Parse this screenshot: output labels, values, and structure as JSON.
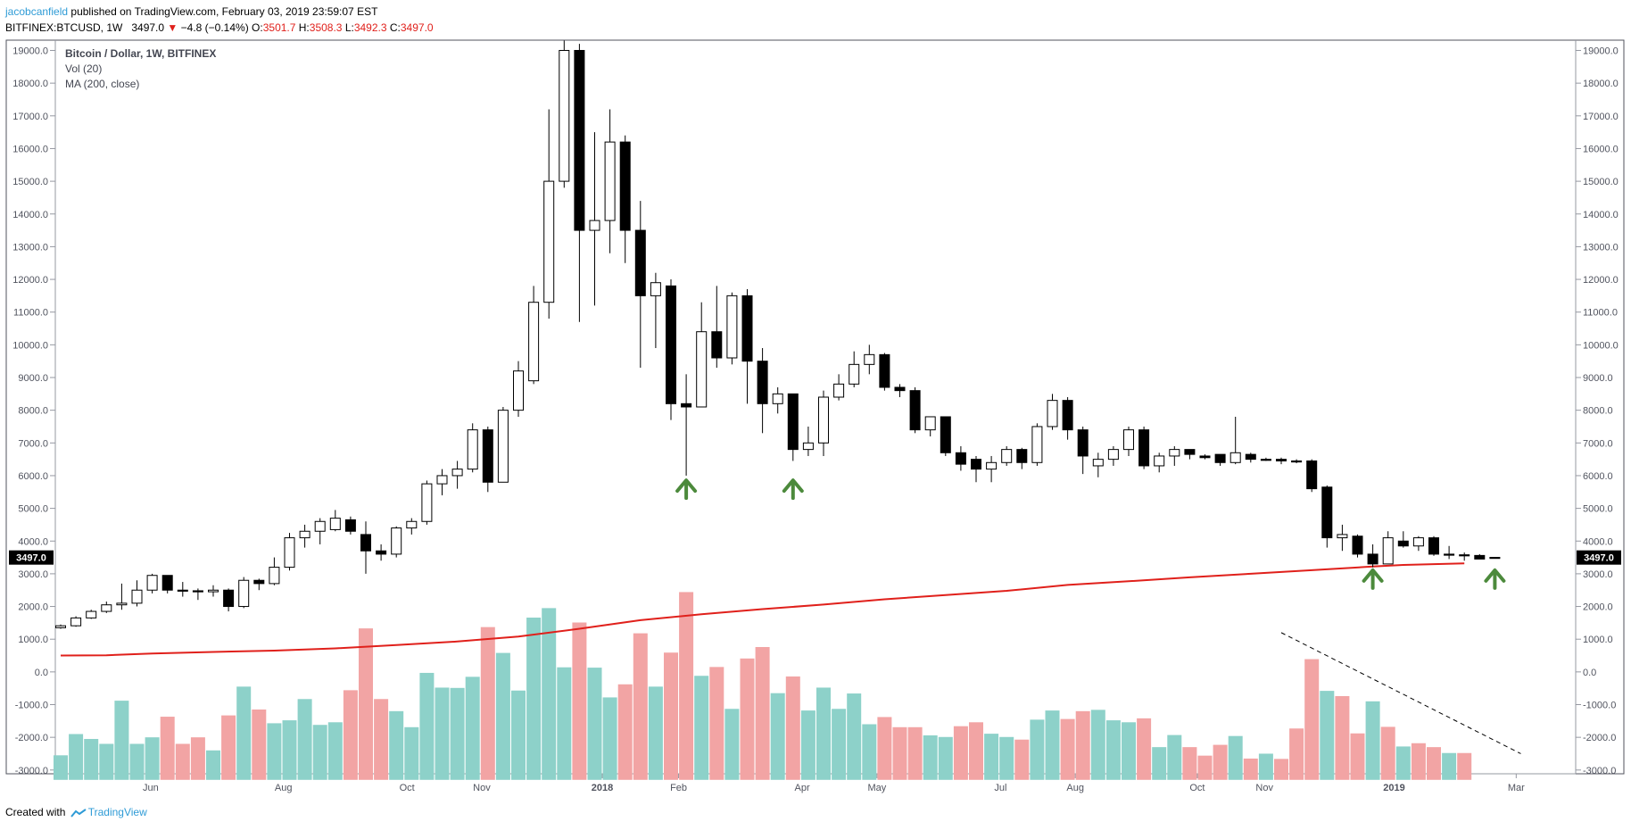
{
  "header": {
    "author": "jacobcanfield",
    "published": "published on TradingView.com, February 03, 2019 23:59:07 EST",
    "symbol": "BITFINEX:BTCUSD, 1W",
    "last": "3497.0",
    "down_arrow": "▼",
    "change": "−4.8 (−0.14%)",
    "o_label": "O:",
    "o_value": "3501.7",
    "h_label": "H:",
    "h_value": "3508.3",
    "l_label": "L:",
    "l_value": "3492.3",
    "c_label": "C:",
    "c_value": "3497.0"
  },
  "legend": {
    "line1": "Bitcoin / Dollar, 1W, BITFINEX",
    "line2": "Vol (20)",
    "line3": "MA (200, close)"
  },
  "footer": {
    "created_with": "Created with",
    "brand": "TradingView"
  },
  "colors": {
    "up_fill": "#ffffff",
    "down_fill": "#000000",
    "candle_border": "#000000",
    "vol_up": "#8dd1c9",
    "vol_down": "#f2a4a4",
    "ma_line": "#e0201b",
    "arrows": "#4c8a3c",
    "axis": "#50535e",
    "price_tag_bg": "#000000",
    "price_tag_text": "#ffffff"
  },
  "chart_data": {
    "type": "candlestick",
    "symbol": "BITFINEX:BTCUSD",
    "interval": "1W",
    "y_axis": {
      "ticks": [
        "19000.0",
        "18000.0",
        "17000.0",
        "16000.0",
        "15000.0",
        "14000.0",
        "13000.0",
        "12000.0",
        "11000.0",
        "10000.0",
        "9000.0",
        "8000.0",
        "7000.0",
        "6000.0",
        "5000.0",
        "4000.0",
        "3000.0",
        "2000.0",
        "1000.0",
        "0.0",
        "-1000.0",
        "-2000.0",
        "-3000.0"
      ],
      "range": [
        -3300,
        19300
      ]
    },
    "x_axis": {
      "labels": [
        {
          "text": "Jun",
          "i": 5.9
        },
        {
          "text": "Aug",
          "i": 14.6
        },
        {
          "text": "Oct",
          "i": 22.7
        },
        {
          "text": "Nov",
          "i": 27.6
        },
        {
          "text": "2018",
          "i": 35.5
        },
        {
          "text": "Feb",
          "i": 40.5
        },
        {
          "text": "Apr",
          "i": 48.6
        },
        {
          "text": "May",
          "i": 53.5
        },
        {
          "text": "Jul",
          "i": 61.6
        },
        {
          "text": "Aug",
          "i": 66.5
        },
        {
          "text": "Oct",
          "i": 74.5
        },
        {
          "text": "Nov",
          "i": 78.9
        },
        {
          "text": "2019",
          "i": 87.4
        },
        {
          "text": "Mar",
          "i": 95.4
        }
      ]
    },
    "last_price": "3497.0",
    "ohlc": [
      [
        1350,
        1450,
        1320,
        1410
      ],
      [
        1410,
        1700,
        1380,
        1650
      ],
      [
        1650,
        1900,
        1620,
        1850
      ],
      [
        1850,
        2150,
        1800,
        2050
      ],
      [
        2050,
        2700,
        1900,
        2100
      ],
      [
        2100,
        2800,
        2000,
        2500
      ],
      [
        2500,
        3000,
        2400,
        2950
      ],
      [
        2950,
        2950,
        2400,
        2500
      ],
      [
        2500,
        2750,
        2300,
        2480
      ],
      [
        2480,
        2550,
        2200,
        2450
      ],
      [
        2450,
        2650,
        2300,
        2500
      ],
      [
        2500,
        2550,
        1850,
        2000
      ],
      [
        2000,
        2900,
        1950,
        2800
      ],
      [
        2800,
        2850,
        2500,
        2700
      ],
      [
        2700,
        3500,
        2650,
        3200
      ],
      [
        3200,
        4250,
        3100,
        4100
      ],
      [
        4100,
        4500,
        3800,
        4300
      ],
      [
        4300,
        4700,
        3900,
        4600
      ],
      [
        4350,
        4950,
        4300,
        4700
      ],
      [
        4650,
        4750,
        4200,
        4300
      ],
      [
        4200,
        4600,
        3000,
        3700
      ],
      [
        3700,
        3900,
        3400,
        3600
      ],
      [
        3600,
        4450,
        3500,
        4400
      ],
      [
        4400,
        4700,
        4200,
        4600
      ],
      [
        4600,
        5850,
        4500,
        5750
      ],
      [
        5750,
        6200,
        5400,
        6000
      ],
      [
        6000,
        6450,
        5600,
        6200
      ],
      [
        6200,
        7600,
        6100,
        7400
      ],
      [
        7400,
        7500,
        5500,
        5800
      ],
      [
        5800,
        8100,
        5800,
        8000
      ],
      [
        8000,
        9500,
        7800,
        9200
      ],
      [
        8900,
        11800,
        8800,
        11300
      ],
      [
        11300,
        17200,
        10800,
        15000
      ],
      [
        15000,
        19300,
        14800,
        19000
      ],
      [
        19000,
        19200,
        10700,
        13500
      ],
      [
        13500,
        16500,
        11200,
        13800
      ],
      [
        13800,
        17200,
        12800,
        16200
      ],
      [
        16200,
        16400,
        12500,
        13500
      ],
      [
        13500,
        14400,
        9300,
        11500
      ],
      [
        11500,
        12200,
        9900,
        11900
      ],
      [
        11800,
        12000,
        7700,
        8200
      ],
      [
        8200,
        9100,
        6000,
        8100
      ],
      [
        8100,
        11300,
        8100,
        10400
      ],
      [
        10400,
        11800,
        9300,
        9600
      ],
      [
        9600,
        11600,
        9400,
        11500
      ],
      [
        11500,
        11700,
        8200,
        9500
      ],
      [
        9500,
        9900,
        7300,
        8200
      ],
      [
        8200,
        8700,
        7900,
        8500
      ],
      [
        8500,
        8500,
        6450,
        6800
      ],
      [
        6800,
        7500,
        6600,
        7000
      ],
      [
        7000,
        8600,
        6600,
        8400
      ],
      [
        8400,
        9100,
        8300,
        8800
      ],
      [
        8800,
        9800,
        8700,
        9400
      ],
      [
        9400,
        10000,
        9100,
        9700
      ],
      [
        9700,
        9750,
        8600,
        8700
      ],
      [
        8700,
        8800,
        8400,
        8600
      ],
      [
        8600,
        8700,
        7300,
        7400
      ],
      [
        7400,
        7800,
        7200,
        7800
      ],
      [
        7800,
        7800,
        6600,
        6700
      ],
      [
        6700,
        6900,
        6150,
        6350
      ],
      [
        6500,
        6600,
        5800,
        6200
      ],
      [
        6200,
        6600,
        5800,
        6400
      ],
      [
        6400,
        6900,
        6300,
        6800
      ],
      [
        6800,
        6850,
        6200,
        6400
      ],
      [
        6400,
        7600,
        6300,
        7500
      ],
      [
        7500,
        8500,
        7400,
        8300
      ],
      [
        8300,
        8400,
        7100,
        7400
      ],
      [
        7400,
        7500,
        6050,
        6600
      ],
      [
        6300,
        6700,
        5950,
        6500
      ],
      [
        6500,
        6900,
        6300,
        6800
      ],
      [
        6800,
        7500,
        6600,
        7400
      ],
      [
        7400,
        7500,
        6200,
        6300
      ],
      [
        6300,
        6700,
        6100,
        6600
      ],
      [
        6600,
        6900,
        6300,
        6800
      ],
      [
        6800,
        6800,
        6500,
        6650
      ],
      [
        6600,
        6650,
        6500,
        6550
      ],
      [
        6650,
        6650,
        6300,
        6400
      ],
      [
        6400,
        7800,
        6350,
        6700
      ],
      [
        6650,
        6700,
        6400,
        6500
      ],
      [
        6500,
        6550,
        6450,
        6480
      ],
      [
        6500,
        6550,
        6350,
        6450
      ],
      [
        6450,
        6500,
        6380,
        6420
      ],
      [
        6450,
        6500,
        5500,
        5600
      ],
      [
        5650,
        5700,
        3800,
        4100
      ],
      [
        4100,
        4500,
        3700,
        4200
      ],
      [
        4150,
        4200,
        3500,
        3600
      ],
      [
        3600,
        3900,
        3200,
        3300
      ],
      [
        3300,
        4300,
        3300,
        4100
      ],
      [
        4000,
        4300,
        3800,
        3850
      ],
      [
        3850,
        4150,
        3700,
        4100
      ],
      [
        4100,
        4150,
        3550,
        3600
      ],
      [
        3600,
        3850,
        3450,
        3580
      ],
      [
        3580,
        3650,
        3400,
        3560
      ],
      [
        3560,
        3600,
        3450,
        3450
      ],
      [
        3501.7,
        3508.3,
        3492.3,
        3497
      ]
    ],
    "volume": [
      [
        -2550,
        1
      ],
      [
        -1900,
        1
      ],
      [
        -2050,
        1
      ],
      [
        -2200,
        1
      ],
      [
        -880,
        1
      ],
      [
        -2200,
        1
      ],
      [
        -2000,
        1
      ],
      [
        -1370,
        0
      ],
      [
        -2200,
        0
      ],
      [
        -2000,
        0
      ],
      [
        -2400,
        1
      ],
      [
        -1330,
        0
      ],
      [
        -450,
        1
      ],
      [
        -1150,
        0
      ],
      [
        -1570,
        1
      ],
      [
        -1480,
        1
      ],
      [
        -830,
        1
      ],
      [
        -1620,
        1
      ],
      [
        -1540,
        1
      ],
      [
        -560,
        0
      ],
      [
        1330,
        0
      ],
      [
        -830,
        0
      ],
      [
        -1200,
        1
      ],
      [
        -1690,
        1
      ],
      [
        -30,
        1
      ],
      [
        -480,
        1
      ],
      [
        -490,
        1
      ],
      [
        -150,
        1
      ],
      [
        1370,
        0
      ],
      [
        580,
        1
      ],
      [
        -570,
        1
      ],
      [
        1660,
        1
      ],
      [
        1950,
        1
      ],
      [
        140,
        1
      ],
      [
        1510,
        0
      ],
      [
        130,
        1
      ],
      [
        -780,
        1
      ],
      [
        -380,
        0
      ],
      [
        1180,
        0
      ],
      [
        -450,
        1
      ],
      [
        590,
        0
      ],
      [
        2440,
        0
      ],
      [
        -120,
        1
      ],
      [
        150,
        0
      ],
      [
        -1130,
        1
      ],
      [
        410,
        0
      ],
      [
        760,
        0
      ],
      [
        -650,
        1
      ],
      [
        -140,
        0
      ],
      [
        -1180,
        1
      ],
      [
        -480,
        1
      ],
      [
        -1130,
        1
      ],
      [
        -660,
        1
      ],
      [
        -1600,
        1
      ],
      [
        -1380,
        0
      ],
      [
        -1690,
        0
      ],
      [
        -1690,
        0
      ],
      [
        -1940,
        1
      ],
      [
        -1990,
        1
      ],
      [
        -1660,
        0
      ],
      [
        -1540,
        0
      ],
      [
        -1890,
        1
      ],
      [
        -1990,
        1
      ],
      [
        -2070,
        0
      ],
      [
        -1460,
        1
      ],
      [
        -1180,
        1
      ],
      [
        -1440,
        0
      ],
      [
        -1200,
        0
      ],
      [
        -1160,
        1
      ],
      [
        -1480,
        1
      ],
      [
        -1540,
        1
      ],
      [
        -1420,
        0
      ],
      [
        -2300,
        1
      ],
      [
        -1930,
        1
      ],
      [
        -2300,
        0
      ],
      [
        -2560,
        0
      ],
      [
        -2230,
        0
      ],
      [
        -1960,
        1
      ],
      [
        -2650,
        0
      ],
      [
        -2500,
        1
      ],
      [
        -2660,
        0
      ],
      [
        -1730,
        0
      ],
      [
        390,
        0
      ],
      [
        -580,
        1
      ],
      [
        -740,
        0
      ],
      [
        -1880,
        0
      ],
      [
        -900,
        1
      ],
      [
        -1680,
        0
      ],
      [
        -2280,
        1
      ],
      [
        -2180,
        0
      ],
      [
        -2300,
        0
      ],
      [
        -2480,
        1
      ],
      [
        -2480,
        0
      ]
    ],
    "ma200": [
      [
        0,
        500
      ],
      [
        3,
        510
      ],
      [
        6,
        560
      ],
      [
        10,
        610
      ],
      [
        14,
        650
      ],
      [
        18,
        720
      ],
      [
        22,
        820
      ],
      [
        26,
        930
      ],
      [
        30,
        1080
      ],
      [
        34,
        1320
      ],
      [
        38,
        1580
      ],
      [
        42,
        1760
      ],
      [
        46,
        1920
      ],
      [
        50,
        2060
      ],
      [
        54,
        2220
      ],
      [
        58,
        2350
      ],
      [
        62,
        2480
      ],
      [
        66,
        2660
      ],
      [
        70,
        2770
      ],
      [
        74,
        2890
      ],
      [
        78,
        3000
      ],
      [
        82,
        3110
      ],
      [
        86,
        3220
      ],
      [
        88,
        3270
      ],
      [
        92,
        3320
      ]
    ],
    "arrows": [
      {
        "i": 41,
        "price": 5750
      },
      {
        "i": 48,
        "price": 5750
      },
      {
        "i": 86,
        "price": 3000
      },
      {
        "i": 94,
        "price": 3000
      }
    ],
    "trend_line": {
      "from": [
        80,
        1200
      ],
      "to": [
        95.7,
        -2500
      ]
    }
  }
}
